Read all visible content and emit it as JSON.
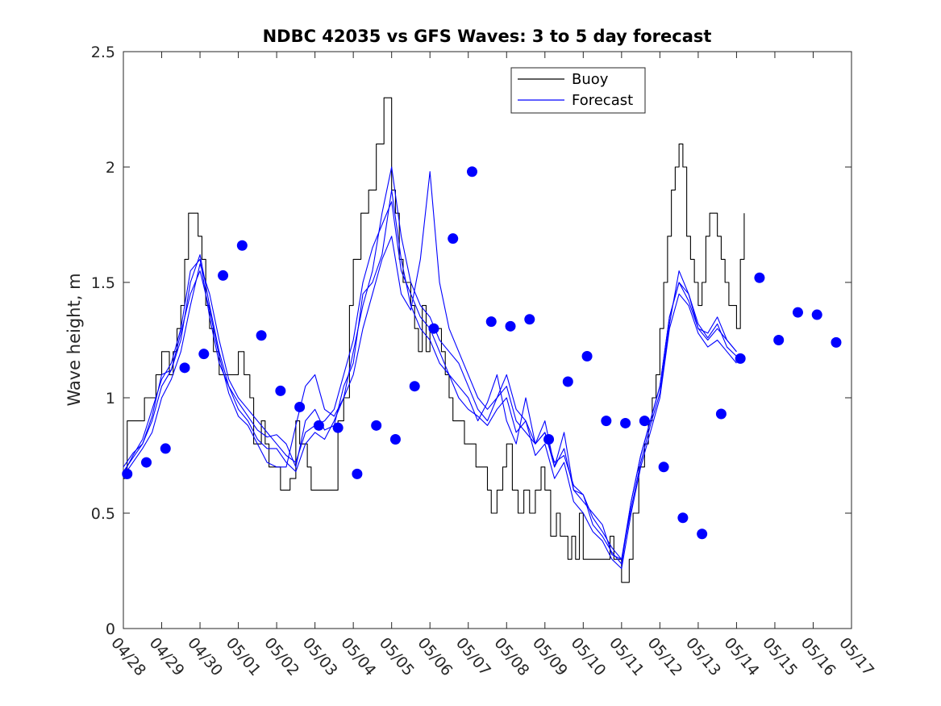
{
  "chart_data": {
    "type": "line",
    "title": "NDBC 42035 vs GFS Waves: 3 to 5 day forecast",
    "xlabel": "",
    "ylabel": "Wave height, m",
    "xlim": [
      "04/28",
      "05/17"
    ],
    "ylim": [
      0,
      2.5
    ],
    "x_ticks": [
      "04/28",
      "04/29",
      "04/30",
      "05/01",
      "05/02",
      "05/03",
      "05/04",
      "05/05",
      "05/06",
      "05/07",
      "05/08",
      "05/09",
      "05/10",
      "05/11",
      "05/12",
      "05/13",
      "05/14",
      "05/15",
      "05/16",
      "05/17"
    ],
    "y_ticks": [
      "0",
      "0.5",
      "1",
      "1.5",
      "2",
      "2.5"
    ],
    "grid": false,
    "legend": {
      "position": "top-center",
      "entries": [
        "Buoy",
        "Forecast"
      ]
    },
    "colors": {
      "buoy": "#000000",
      "forecast": "#0000ff"
    },
    "series": [
      {
        "name": "Buoy",
        "style": "black-line",
        "x_days": [
          0.0,
          0.1,
          0.15,
          0.25,
          0.4,
          0.55,
          0.7,
          0.85,
          0.9,
          1.0,
          1.1,
          1.2,
          1.3,
          1.4,
          1.5,
          1.6,
          1.7,
          1.85,
          1.95,
          2.05,
          2.15,
          2.25,
          2.35,
          2.5,
          2.6,
          2.7,
          2.8,
          2.9,
          3.0,
          3.05,
          3.15,
          3.2,
          3.3,
          3.4,
          3.5,
          3.6,
          3.7,
          3.8,
          3.9,
          4.0,
          4.1,
          4.2,
          4.35,
          4.5,
          4.6,
          4.7,
          4.8,
          4.9,
          5.0,
          5.2,
          5.4,
          5.5,
          5.6,
          5.75,
          5.9,
          6.0,
          6.2,
          6.4,
          6.6,
          6.8,
          7.0,
          7.1,
          7.2,
          7.3,
          7.5,
          7.6,
          7.7,
          7.8,
          7.9,
          8.0,
          8.15,
          8.3,
          8.4,
          8.5,
          8.6,
          8.75,
          8.9,
          9.0,
          9.1,
          9.2,
          9.4,
          9.5,
          9.6,
          9.75,
          9.9,
          10.0,
          10.15,
          10.3,
          10.45,
          10.6,
          10.75,
          10.9,
          11.0,
          11.15,
          11.3,
          11.4,
          11.5,
          11.6,
          11.7,
          11.8,
          11.9,
          12.0,
          12.15,
          12.3,
          12.4,
          12.5,
          12.6,
          12.7,
          12.8,
          12.9,
          13.0,
          13.05,
          13.1,
          13.15,
          13.2,
          13.3,
          13.45,
          13.6,
          13.7,
          13.8,
          13.9,
          14.0,
          14.1,
          14.2,
          14.3,
          14.4,
          14.5,
          14.6,
          14.7,
          14.8,
          14.9,
          15.0,
          15.1,
          15.2,
          15.3,
          15.5,
          15.6,
          15.7,
          15.8,
          15.9,
          16.0,
          16.1,
          16.2
        ],
        "values": [
          0.65,
          0.9,
          0.9,
          0.9,
          0.9,
          1.0,
          1.0,
          1.1,
          1.1,
          1.2,
          1.2,
          1.1,
          1.2,
          1.3,
          1.4,
          1.6,
          1.8,
          1.8,
          1.7,
          1.6,
          1.4,
          1.3,
          1.2,
          1.1,
          1.1,
          1.1,
          1.1,
          1.1,
          1.2,
          1.2,
          1.1,
          1.1,
          1.0,
          0.8,
          0.8,
          0.9,
          0.8,
          0.7,
          0.7,
          0.7,
          0.6,
          0.6,
          0.65,
          0.9,
          0.8,
          0.8,
          0.7,
          0.6,
          0.6,
          0.6,
          0.6,
          0.6,
          0.9,
          1.0,
          1.4,
          1.6,
          1.8,
          1.9,
          2.1,
          2.3,
          1.9,
          1.8,
          1.6,
          1.5,
          1.4,
          1.3,
          1.2,
          1.4,
          1.2,
          1.3,
          1.3,
          1.2,
          1.1,
          1.0,
          0.9,
          0.9,
          0.8,
          0.8,
          0.8,
          0.7,
          0.7,
          0.6,
          0.5,
          0.6,
          0.7,
          0.8,
          0.6,
          0.5,
          0.6,
          0.5,
          0.6,
          0.7,
          0.6,
          0.4,
          0.5,
          0.4,
          0.4,
          0.3,
          0.4,
          0.3,
          0.5,
          0.3,
          0.3,
          0.3,
          0.3,
          0.3,
          0.3,
          0.4,
          0.3,
          0.3,
          0.2,
          0.2,
          0.2,
          0.2,
          0.3,
          0.5,
          0.7,
          0.8,
          0.9,
          1.0,
          1.1,
          1.3,
          1.5,
          1.7,
          1.9,
          2.0,
          2.1,
          2.0,
          1.7,
          1.6,
          1.5,
          1.4,
          1.5,
          1.7,
          1.8,
          1.7,
          1.6,
          1.5,
          1.4,
          1.4,
          1.3,
          1.6,
          1.8
        ]
      },
      {
        "name": "Forecast",
        "style": "blue-line-a",
        "x_days": [
          0.0,
          0.25,
          0.5,
          0.75,
          1.0,
          1.25,
          1.5,
          1.75,
          2.0,
          2.25,
          2.5,
          2.75,
          3.0,
          3.25,
          3.5,
          3.75,
          4.0,
          4.25,
          4.5,
          4.75,
          5.0,
          5.25,
          5.5,
          5.75,
          6.0,
          6.25,
          6.5,
          6.75,
          7.0,
          7.25,
          7.5,
          7.75,
          8.0,
          8.25,
          8.5,
          8.75,
          9.0,
          9.25,
          9.5,
          9.75,
          10.0,
          10.25,
          10.5,
          10.75,
          11.0,
          11.25,
          11.5,
          11.75,
          12.0,
          12.25,
          12.5,
          12.75,
          13.0,
          13.25,
          13.5,
          13.75,
          14.0,
          14.25,
          14.5,
          14.75,
          15.0,
          15.25,
          15.5,
          15.75,
          16.0
        ],
        "values": [
          0.68,
          0.74,
          0.8,
          0.9,
          1.05,
          1.12,
          1.25,
          1.5,
          1.62,
          1.4,
          1.2,
          1.05,
          0.98,
          0.92,
          0.86,
          0.83,
          0.84,
          0.8,
          0.7,
          0.9,
          0.95,
          0.86,
          0.88,
          1.05,
          1.15,
          1.45,
          1.5,
          1.62,
          1.9,
          1.6,
          1.4,
          1.3,
          1.25,
          1.15,
          1.1,
          1.05,
          1.0,
          0.9,
          0.98,
          1.1,
          0.9,
          0.8,
          1.0,
          0.8,
          0.9,
          0.7,
          0.85,
          0.6,
          0.55,
          0.5,
          0.45,
          0.32,
          0.3,
          0.55,
          0.75,
          0.9,
          1.05,
          1.35,
          1.5,
          1.45,
          1.3,
          1.25,
          1.3,
          1.25,
          1.2
        ]
      },
      {
        "name": "",
        "style": "blue-line-b",
        "x_days": [
          0.0,
          0.25,
          0.5,
          0.75,
          1.0,
          1.25,
          1.5,
          1.75,
          2.0,
          2.25,
          2.5,
          2.75,
          3.0,
          3.25,
          3.5,
          3.75,
          4.0,
          4.25,
          4.5,
          4.75,
          5.0,
          5.25,
          5.5,
          5.75,
          6.0,
          6.25,
          6.5,
          6.75,
          7.0,
          7.25,
          7.5,
          7.75,
          8.0,
          8.25,
          8.5,
          8.75,
          9.0,
          9.25,
          9.5,
          9.75,
          10.0,
          10.25,
          10.5,
          10.75,
          11.0,
          11.25,
          11.5,
          11.75,
          12.0,
          12.25,
          12.5,
          12.75,
          13.0,
          13.25,
          13.5,
          13.75,
          14.0,
          14.25,
          14.5,
          14.75,
          15.0,
          15.25,
          15.5,
          15.75,
          16.0
        ],
        "values": [
          0.66,
          0.72,
          0.78,
          0.85,
          1.0,
          1.08,
          1.2,
          1.4,
          1.58,
          1.45,
          1.25,
          1.08,
          1.0,
          0.95,
          0.9,
          0.85,
          0.8,
          0.75,
          0.72,
          0.85,
          0.88,
          0.9,
          0.95,
          1.1,
          1.25,
          1.5,
          1.65,
          1.75,
          1.85,
          1.55,
          1.45,
          1.35,
          1.3,
          1.2,
          1.1,
          1.0,
          0.95,
          0.92,
          0.88,
          0.95,
          1.0,
          0.85,
          0.9,
          0.75,
          0.8,
          0.65,
          0.72,
          0.55,
          0.5,
          0.42,
          0.38,
          0.3,
          0.26,
          0.5,
          0.7,
          0.85,
          1.0,
          1.3,
          1.45,
          1.4,
          1.28,
          1.22,
          1.25,
          1.2,
          1.15
        ]
      },
      {
        "name": "",
        "style": "blue-line-c",
        "x_days": [
          0.0,
          0.25,
          0.5,
          0.75,
          1.0,
          1.25,
          1.5,
          1.75,
          2.0,
          2.25,
          2.5,
          2.75,
          3.0,
          3.25,
          3.5,
          3.75,
          4.0,
          4.25,
          4.5,
          4.75,
          5.0,
          5.25,
          5.5,
          5.75,
          6.0,
          6.25,
          6.5,
          6.75,
          7.0,
          7.25,
          7.5,
          7.75,
          8.0,
          8.25,
          8.5,
          8.75,
          9.0,
          9.25,
          9.5,
          9.75,
          10.0,
          10.25,
          10.5,
          10.75,
          11.0,
          11.25,
          11.5,
          11.75,
          12.0,
          12.25,
          12.5,
          12.75,
          13.0,
          13.25,
          13.5,
          13.75,
          14.0,
          14.25,
          14.5,
          14.75,
          15.0,
          15.25,
          15.5,
          15.75,
          16.0
        ],
        "values": [
          0.67,
          0.75,
          0.82,
          0.95,
          1.08,
          1.15,
          1.3,
          1.55,
          1.6,
          1.35,
          1.15,
          1.05,
          0.95,
          0.9,
          0.82,
          0.78,
          0.78,
          0.72,
          0.68,
          0.8,
          0.85,
          0.82,
          0.9,
          1.0,
          1.2,
          1.4,
          1.55,
          1.8,
          2.0,
          1.7,
          1.5,
          1.4,
          1.35,
          1.25,
          1.2,
          1.15,
          1.05,
          0.95,
          0.9,
          1.0,
          1.05,
          0.9,
          0.85,
          0.8,
          0.85,
          0.72,
          0.75,
          0.62,
          0.58,
          0.48,
          0.42,
          0.35,
          0.3,
          0.52,
          0.72,
          0.88,
          1.02,
          1.32,
          1.55,
          1.45,
          1.32,
          1.26,
          1.32,
          1.22,
          1.18
        ]
      },
      {
        "name": "",
        "style": "blue-line-d",
        "x_days": [
          0.0,
          0.25,
          0.5,
          0.75,
          1.0,
          1.25,
          1.5,
          1.75,
          2.0,
          2.25,
          2.5,
          2.75,
          3.0,
          3.25,
          3.5,
          3.75,
          4.0,
          4.25,
          4.5,
          4.75,
          5.0,
          5.25,
          5.5,
          5.75,
          6.0,
          6.25,
          6.5,
          6.75,
          7.0,
          7.25,
          7.5,
          7.75,
          8.0,
          8.25,
          8.5,
          8.75,
          9.0,
          9.25,
          9.5,
          9.75,
          10.0,
          10.25,
          10.5,
          10.75,
          11.0,
          11.25,
          11.5,
          11.75,
          12.0,
          12.25,
          12.5,
          12.75,
          13.0,
          13.25,
          13.5,
          13.75,
          14.0,
          14.25,
          14.5,
          14.75,
          15.0,
          15.25,
          15.5,
          15.75,
          16.0
        ],
        "values": [
          0.7,
          0.76,
          0.8,
          0.92,
          1.1,
          1.12,
          1.28,
          1.45,
          1.55,
          1.38,
          1.18,
          1.02,
          0.92,
          0.88,
          0.8,
          0.72,
          0.7,
          0.7,
          0.88,
          1.05,
          1.1,
          0.95,
          0.92,
          1.0,
          1.1,
          1.3,
          1.45,
          1.6,
          1.7,
          1.45,
          1.38,
          1.6,
          1.98,
          1.5,
          1.3,
          1.2,
          1.1,
          1.0,
          0.95,
          1.0,
          1.1,
          0.95,
          0.9,
          0.8,
          0.85,
          0.7,
          0.78,
          0.6,
          0.58,
          0.45,
          0.4,
          0.33,
          0.28,
          0.55,
          0.75,
          0.9,
          1.05,
          1.35,
          1.5,
          1.42,
          1.3,
          1.28,
          1.35,
          1.25,
          1.2
        ]
      },
      {
        "name": "",
        "style": "forecast-dots",
        "x_days": [
          0.1,
          0.6,
          1.1,
          1.6,
          2.1,
          2.6,
          3.1,
          3.6,
          4.1,
          4.6,
          5.1,
          5.6,
          6.1,
          6.6,
          7.1,
          7.6,
          8.1,
          8.6,
          9.1,
          9.6,
          10.1,
          10.6,
          11.1,
          11.6,
          12.1,
          12.6,
          13.1,
          13.6,
          14.1,
          14.6,
          15.1,
          15.6,
          16.1,
          16.6,
          17.1,
          17.6,
          18.1,
          18.6
        ],
        "values": [
          0.67,
          0.72,
          0.78,
          1.13,
          1.19,
          1.53,
          1.66,
          1.27,
          1.03,
          0.96,
          0.88,
          0.87,
          0.67,
          0.88,
          0.82,
          1.05,
          1.3,
          1.69,
          1.98,
          1.33,
          1.31,
          1.34,
          0.82,
          1.07,
          1.18,
          0.9,
          0.89,
          0.9,
          0.7,
          0.48,
          0.41,
          0.93,
          1.17,
          1.52,
          1.25,
          1.37,
          1.36,
          1.24
        ]
      }
    ]
  }
}
